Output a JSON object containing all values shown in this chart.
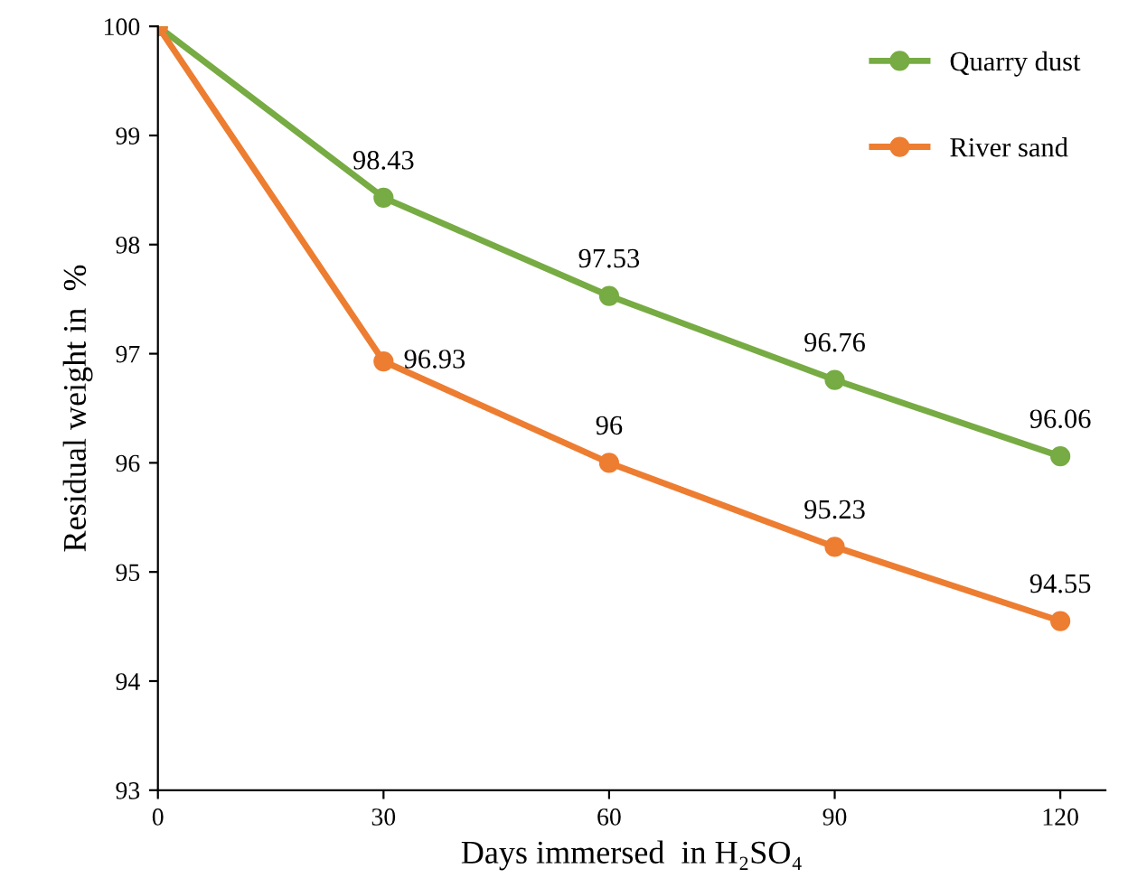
{
  "chart_data": {
    "type": "line",
    "xlabel": "Days immersed  in H₂SO₄",
    "ylabel": "Residual weight in  %",
    "x": [
      0,
      30,
      60,
      90,
      120
    ],
    "series": [
      {
        "name": "Quarry dust",
        "color": "#77ab43",
        "values": [
          100,
          98.43,
          97.53,
          96.76,
          96.06
        ],
        "value_labels": [
          null,
          "98.43",
          "97.53",
          "96.76",
          "96.06"
        ]
      },
      {
        "name": "River sand",
        "color": "#ed7d31",
        "values": [
          100,
          96.93,
          96,
          95.23,
          94.55
        ],
        "value_labels": [
          null,
          "96.93",
          "96",
          "95.23",
          "94.55"
        ]
      }
    ],
    "xlim": [
      0,
      126
    ],
    "xticks": [
      0,
      30,
      60,
      90,
      120
    ],
    "ylim": [
      93,
      100
    ],
    "yticks": [
      93,
      94,
      95,
      96,
      97,
      98,
      99,
      100
    ],
    "grid": false,
    "legend": "top right",
    "marker": "circle",
    "line_style": "solid"
  }
}
